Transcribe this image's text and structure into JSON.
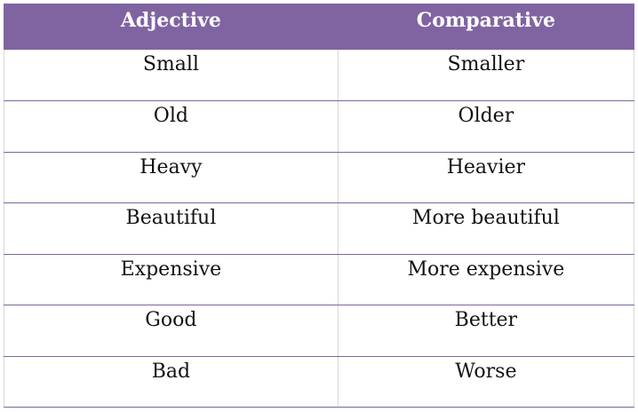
{
  "table": {
    "headers": {
      "adjective": "Adjective",
      "comparative": "Comparative"
    },
    "rows": [
      {
        "adjective": "Small",
        "comparative": "Smaller"
      },
      {
        "adjective": "Old",
        "comparative": "Older"
      },
      {
        "adjective": "Heavy",
        "comparative": "Heavier"
      },
      {
        "adjective": "Beautiful",
        "comparative": "More beautiful"
      },
      {
        "adjective": "Expensive",
        "comparative": "More expensive"
      },
      {
        "adjective": "Good",
        "comparative": "Better"
      },
      {
        "adjective": "Bad",
        "comparative": "Worse"
      }
    ],
    "colors": {
      "header_background": "#8064a2",
      "header_text": "#ffffff",
      "row_divider": "#8064a2"
    }
  }
}
